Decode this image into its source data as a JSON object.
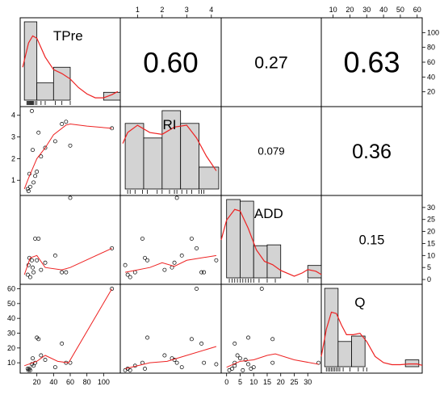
{
  "chart_data": {
    "type": "scatter-matrix",
    "variables": [
      "TPre",
      "RI",
      "ADD",
      "Q"
    ],
    "correlations": [
      {
        "row": 0,
        "col": 1,
        "value": "0.60"
      },
      {
        "row": 0,
        "col": 2,
        "value": "0.27"
      },
      {
        "row": 0,
        "col": 3,
        "value": "0.63"
      },
      {
        "row": 1,
        "col": 2,
        "value": "0.079"
      },
      {
        "row": 1,
        "col": 3,
        "value": "0.36"
      },
      {
        "row": 2,
        "col": 3,
        "value": "0.15"
      }
    ],
    "axes": {
      "TPre": {
        "range": [
          0,
          120
        ],
        "ticks": [
          20,
          40,
          60,
          80,
          100
        ]
      },
      "RI": {
        "range": [
          0.3,
          4.4
        ],
        "ticks": [
          1,
          2,
          3,
          4
        ]
      },
      "ADD": {
        "range": [
          -2,
          35
        ],
        "ticks": [
          0,
          5,
          10,
          15,
          20,
          25,
          30
        ]
      },
      "Q": {
        "range": [
          3,
          63
        ],
        "ticks": [
          10,
          20,
          30,
          40,
          50,
          60
        ]
      }
    },
    "histograms": {
      "TPre": {
        "bins": [
          [
            5,
            20,
            10
          ],
          [
            20,
            40,
            2.2
          ],
          [
            40,
            60,
            4.2
          ],
          [
            60,
            100,
            0
          ],
          [
            100,
            120,
            1
          ]
        ],
        "density": [
          [
            3,
            4.2
          ],
          [
            10,
            7.3
          ],
          [
            15,
            8.2
          ],
          [
            20,
            7.9
          ],
          [
            30,
            5.5
          ],
          [
            40,
            3.9
          ],
          [
            50,
            3.4
          ],
          [
            60,
            2.7
          ],
          [
            70,
            1.6
          ],
          [
            80,
            0.8
          ],
          [
            90,
            0.3
          ],
          [
            100,
            0.3
          ],
          [
            110,
            0.7
          ],
          [
            117,
            1.1
          ]
        ],
        "rug": [
          8,
          9,
          10,
          11,
          12,
          13,
          14,
          15,
          16,
          18,
          20,
          25,
          30,
          42,
          50,
          60
        ]
      },
      "RI": {
        "bins": [
          [
            0.5,
            1.25,
            3.6
          ],
          [
            1.25,
            2,
            2.8
          ],
          [
            2,
            2.75,
            4.3
          ],
          [
            2.75,
            3.5,
            3.6
          ],
          [
            3.5,
            4.3,
            1.2
          ]
        ],
        "density": [
          [
            0.4,
            2.5
          ],
          [
            0.6,
            3.1
          ],
          [
            1.0,
            3.5
          ],
          [
            1.5,
            3.1
          ],
          [
            2.0,
            3.0
          ],
          [
            2.5,
            3.4
          ],
          [
            3.0,
            3.5
          ],
          [
            3.4,
            2.8
          ],
          [
            3.8,
            1.8
          ],
          [
            4.2,
            1.0
          ]
        ],
        "rug": [
          0.6,
          0.7,
          0.9,
          1.2,
          1.4,
          1.8,
          2.0,
          2.3,
          2.5,
          2.6,
          2.8,
          3.0,
          3.2,
          3.5,
          3.6,
          3.7
        ]
      },
      "ADD": {
        "bins": [
          [
            0,
            5,
            9.5
          ],
          [
            5,
            10,
            9.3
          ],
          [
            10,
            15,
            3.9
          ],
          [
            15,
            20,
            4.0
          ],
          [
            20,
            25,
            0
          ],
          [
            25,
            30,
            0
          ],
          [
            30,
            35,
            1.5
          ]
        ],
        "density": [
          [
            -2,
            4.6
          ],
          [
            0,
            7.0
          ],
          [
            3,
            8.3
          ],
          [
            5,
            8.1
          ],
          [
            8,
            6.0
          ],
          [
            11,
            3.4
          ],
          [
            14,
            2.0
          ],
          [
            17,
            1.6
          ],
          [
            20,
            0.9
          ],
          [
            25,
            0.2
          ],
          [
            28,
            0.6
          ],
          [
            30,
            1.0
          ],
          [
            33,
            0.8
          ],
          [
            35,
            0.4
          ]
        ],
        "rug": [
          1,
          2,
          3,
          4,
          5,
          6,
          7,
          8,
          9,
          10,
          12,
          15,
          18,
          30
        ]
      },
      "Q": {
        "bins": [
          [
            5,
            13,
            11.5
          ],
          [
            13,
            21,
            3.7
          ],
          [
            21,
            29,
            4.5
          ],
          [
            29,
            37,
            0
          ],
          [
            37,
            45,
            0
          ],
          [
            45,
            53,
            0
          ],
          [
            53,
            61,
            1
          ]
        ],
        "density": [
          [
            3,
            1.5
          ],
          [
            6,
            5.5
          ],
          [
            9,
            8.0
          ],
          [
            12,
            7.8
          ],
          [
            15,
            6.1
          ],
          [
            18,
            4.7
          ],
          [
            22,
            4.7
          ],
          [
            26,
            4.9
          ],
          [
            30,
            3.7
          ],
          [
            35,
            1.5
          ],
          [
            40,
            0.6
          ],
          [
            45,
            0.3
          ],
          [
            50,
            0.3
          ],
          [
            55,
            0.4
          ],
          [
            60,
            0.4
          ],
          [
            63,
            0.2
          ]
        ],
        "rug": [
          6,
          7,
          8,
          9,
          10,
          11,
          12,
          13,
          14,
          16,
          20,
          25,
          28,
          30
        ]
      }
    },
    "points": [
      {
        "TPre": 9,
        "RI": 0.6,
        "ADD": 2,
        "Q": 6
      },
      {
        "TPre": 10,
        "RI": 0.5,
        "ADD": 6,
        "Q": 5
      },
      {
        "TPre": 12,
        "RI": 0.7,
        "ADD": 1,
        "Q": 5
      },
      {
        "TPre": 11,
        "RI": 1.3,
        "ADD": 9,
        "Q": 6
      },
      {
        "TPre": 14,
        "RI": 4.2,
        "ADD": 8,
        "Q": 9
      },
      {
        "TPre": 15,
        "RI": 2.4,
        "ADD": 5,
        "Q": 13
      },
      {
        "TPre": 16,
        "RI": 0.9,
        "ADD": 3,
        "Q": 8
      },
      {
        "TPre": 18,
        "RI": 1.2,
        "ADD": 17,
        "Q": 10
      },
      {
        "TPre": 20,
        "RI": 1.4,
        "ADD": 8,
        "Q": 27
      },
      {
        "TPre": 22,
        "RI": 3.2,
        "ADD": 17,
        "Q": 26
      },
      {
        "TPre": 25,
        "RI": 2.1,
        "ADD": 4,
        "Q": 15
      },
      {
        "TPre": 30,
        "RI": 2.5,
        "ADD": 7,
        "Q": 12
      },
      {
        "TPre": 42,
        "RI": 2.8,
        "ADD": 10,
        "Q": 7
      },
      {
        "TPre": 50,
        "RI": 3.6,
        "ADD": 3,
        "Q": 23
      },
      {
        "TPre": 55,
        "RI": 3.7,
        "ADD": 3,
        "Q": 10
      },
      {
        "TPre": 60,
        "RI": 2.6,
        "ADD": 34,
        "Q": 10
      },
      {
        "TPre": 110,
        "RI": 3.4,
        "ADD": 13,
        "Q": 60
      }
    ],
    "smooth_lines": [
      {
        "row": 1,
        "col": 0,
        "points": [
          [
            5,
            0.6
          ],
          [
            10,
            1.1
          ],
          [
            20,
            2.0
          ],
          [
            30,
            2.5
          ],
          [
            40,
            3.1
          ],
          [
            55,
            3.55
          ],
          [
            60,
            3.6
          ],
          [
            80,
            3.5
          ],
          [
            110,
            3.4
          ]
        ]
      },
      {
        "row": 2,
        "col": 0,
        "points": [
          [
            5,
            2
          ],
          [
            12,
            9
          ],
          [
            20,
            10
          ],
          [
            30,
            5
          ],
          [
            50,
            4
          ],
          [
            60,
            5
          ],
          [
            110,
            13
          ]
        ]
      },
      {
        "row": 2,
        "col": 1,
        "points": [
          [
            0.5,
            3
          ],
          [
            1.5,
            5
          ],
          [
            2.0,
            7
          ],
          [
            2.5,
            5.5
          ],
          [
            3.0,
            8
          ],
          [
            4.2,
            10
          ]
        ]
      },
      {
        "row": 3,
        "col": 0,
        "points": [
          [
            5,
            8
          ],
          [
            20,
            11
          ],
          [
            30,
            15
          ],
          [
            45,
            11
          ],
          [
            58,
            10
          ],
          [
            110,
            60
          ]
        ]
      },
      {
        "row": 3,
        "col": 1,
        "points": [
          [
            0.5,
            6
          ],
          [
            1.5,
            10
          ],
          [
            2.2,
            11
          ],
          [
            3.0,
            15
          ],
          [
            4.2,
            21
          ]
        ]
      },
      {
        "row": 3,
        "col": 2,
        "points": [
          [
            0,
            7
          ],
          [
            5,
            11
          ],
          [
            10,
            12
          ],
          [
            15,
            15
          ],
          [
            18,
            16
          ],
          [
            25,
            12
          ],
          [
            34,
            9
          ]
        ]
      }
    ]
  },
  "colors": {
    "panel_border": "#000000",
    "histogram_fill": "#d3d3d3",
    "smooth_line": "#ee2222",
    "point_stroke": "#000000"
  }
}
